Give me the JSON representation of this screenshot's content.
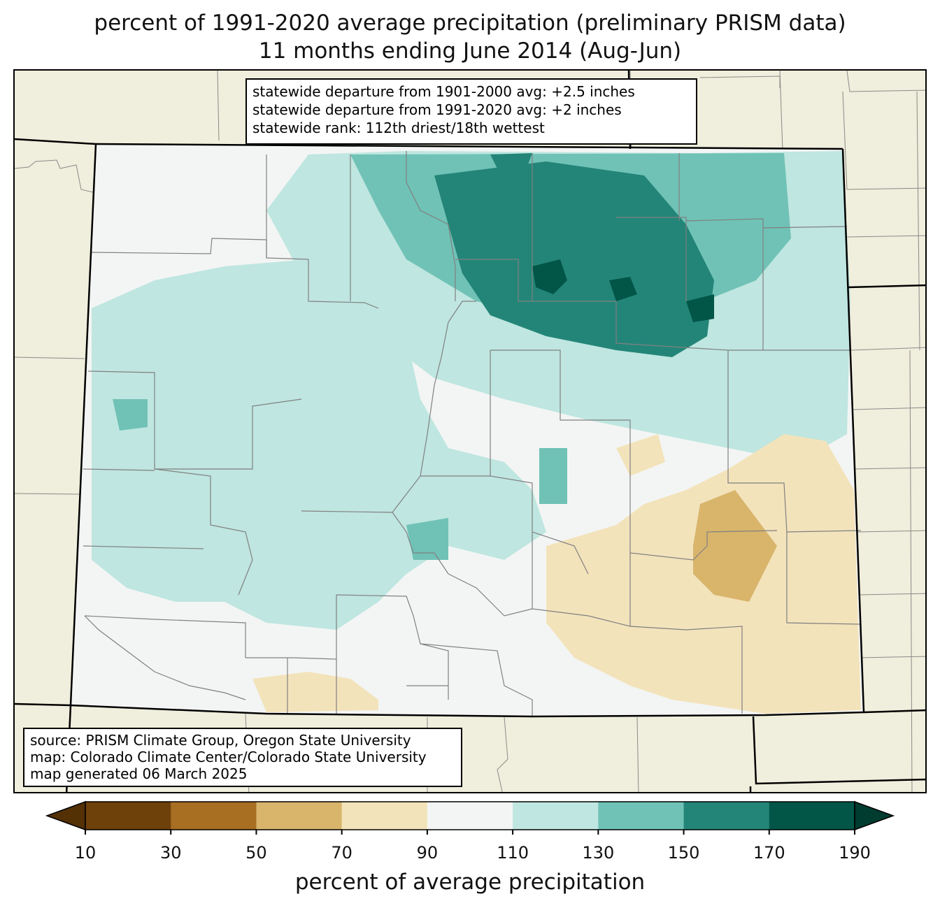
{
  "title": {
    "line1": "percent of 1991-2020 average precipitation (preliminary PRISM data)",
    "line2": "11 months ending June 2014 (Aug-Jun)"
  },
  "stats": {
    "line1": "statewide departure from 1901-2000 avg: +2.5 inches",
    "line2": "statewide departure from 1991-2020 avg: +2 inches",
    "line3": "statewide rank: 112th driest/18th wettest"
  },
  "source": {
    "line1": "source: PRISM Climate Group, Oregon State University",
    "line2": "map: Colorado Climate Center/Colorado State University",
    "line3": "map generated 06 March 2025"
  },
  "colorbar": {
    "label": "percent of average precipitation",
    "ticks": [
      "10",
      "30",
      "50",
      "70",
      "90",
      "110",
      "130",
      "150",
      "170",
      "190"
    ],
    "under_color": "#543005",
    "over_color": "#003c30",
    "colors": [
      "#6e400a",
      "#a86e22",
      "#d9b56c",
      "#f3e3bb",
      "#f3f5f4",
      "#bfe6e0",
      "#70c2b6",
      "#238578",
      "#015648"
    ]
  },
  "map_colors": {
    "background": "#f0eedc",
    "state_fill": "#f3f5f4",
    "county_line": "#808080",
    "state_line": "#000000"
  }
}
